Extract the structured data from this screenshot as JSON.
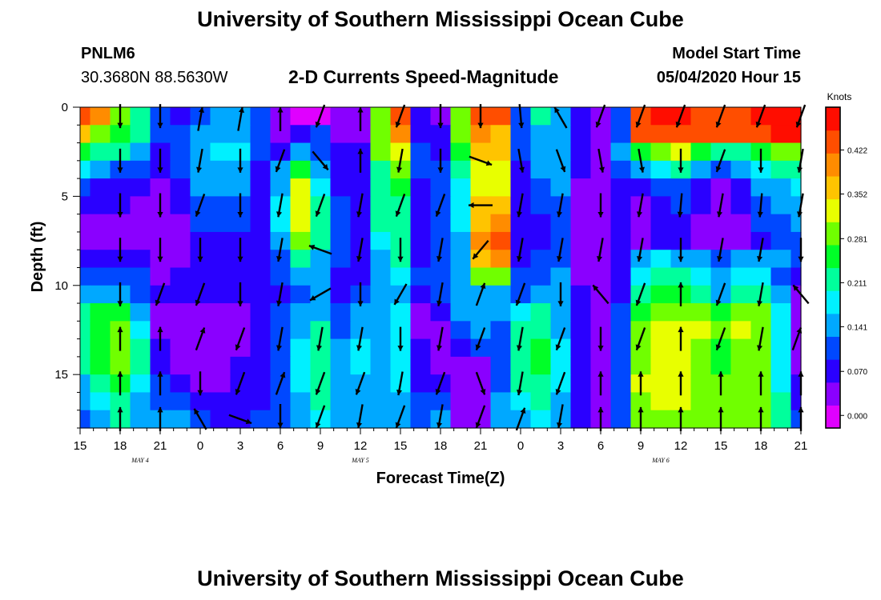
{
  "header": {
    "title": "University of Southern Mississippi Ocean Cube",
    "station_name": "PNLM6",
    "station_coords": "30.3680N 88.5630W",
    "chart_title": "2-D Currents Speed-Magnitude",
    "model_start_label": "Model Start Time",
    "model_start_value": "05/04/2020 Hour 15"
  },
  "footer": {
    "title": "University of Southern Mississippi Ocean Cube"
  },
  "chart_data": {
    "type": "heatmap",
    "title": "2-D Currents Speed-Magnitude",
    "xlabel": "Forecast Time(Z)",
    "ylabel": "Depth (ft)",
    "x_tick_labels": [
      "15",
      "18",
      "21",
      "0",
      "3",
      "6",
      "9",
      "12",
      "15",
      "18",
      "21",
      "0",
      "3",
      "6",
      "9",
      "12",
      "15",
      "18",
      "21"
    ],
    "x_range_hours": [
      0,
      54
    ],
    "date_labels": [
      {
        "text": "MAY 4",
        "hour": 4.5
      },
      {
        "text": "MAY 5",
        "hour": 21
      },
      {
        "text": "MAY 6",
        "hour": 43.5
      }
    ],
    "y_tick_labels": [
      "0",
      "5",
      "10",
      "15"
    ],
    "y_ticks": [
      0,
      5,
      10,
      15
    ],
    "ylim": [
      0,
      18
    ],
    "y_inverted": true,
    "colorbar": {
      "unit": "Knots",
      "tick_labels": [
        "0.000",
        "0.070",
        "0.141",
        "0.211",
        "0.281",
        "0.352",
        "0.422"
      ],
      "ticks": [
        0,
        0.07,
        0.141,
        0.211,
        0.281,
        0.352,
        0.422
      ],
      "range": [
        -0.02,
        0.49
      ],
      "colors": [
        "#e000ff",
        "#8a00ff",
        "#2a00ff",
        "#0048ff",
        "#00a8ff",
        "#00f0ff",
        "#00ff9c",
        "#00ff28",
        "#70ff00",
        "#e8ff00",
        "#ffc400",
        "#ff8c00",
        "#ff4e00",
        "#ff0d00"
      ]
    },
    "grid": {
      "times": [
        0,
        1.5,
        3,
        4.5,
        6,
        7.5,
        9,
        10.5,
        12,
        13.5,
        15,
        16.5,
        18,
        19.5,
        21,
        22.5,
        24,
        25.5,
        27,
        28.5,
        30,
        31.5,
        33,
        34.5,
        36,
        37.5,
        39,
        40.5,
        42,
        43.5,
        45,
        46.5,
        48,
        49.5,
        51,
        52.5,
        54
      ],
      "depths": [
        0.5,
        1.5,
        2.5,
        3.5,
        4.5,
        5.5,
        6.5,
        7.5,
        8.5,
        9.5,
        10.5,
        11.5,
        12.5,
        13.5,
        14.5,
        15.5,
        16.5,
        17.5
      ],
      "speed_knots": [
        [
          0.45,
          0.4,
          0.3,
          0.22,
          0.1,
          0.08,
          0.12,
          0.14,
          0.14,
          0.1,
          0.02,
          0.01,
          0.01,
          0.02,
          0.03,
          0.3,
          0.42,
          0.06,
          0.05,
          0.3,
          0.42,
          0.42,
          0.1,
          0.2,
          0.14,
          0.06,
          0.05,
          0.1,
          0.45,
          0.46,
          0.46,
          0.44,
          0.44,
          0.44,
          0.46,
          0.48,
          0.48
        ],
        [
          0.35,
          0.3,
          0.26,
          0.2,
          0.1,
          0.09,
          0.14,
          0.16,
          0.16,
          0.12,
          0.04,
          0.07,
          0.1,
          0.05,
          0.05,
          0.3,
          0.4,
          0.08,
          0.06,
          0.3,
          0.4,
          0.36,
          0.1,
          0.16,
          0.14,
          0.06,
          0.04,
          0.12,
          0.42,
          0.44,
          0.44,
          0.42,
          0.42,
          0.42,
          0.44,
          0.46,
          0.46
        ],
        [
          0.25,
          0.22,
          0.2,
          0.16,
          0.08,
          0.1,
          0.16,
          0.18,
          0.18,
          0.12,
          0.08,
          0.16,
          0.12,
          0.06,
          0.06,
          0.28,
          0.34,
          0.1,
          0.08,
          0.24,
          0.38,
          0.36,
          0.1,
          0.14,
          0.14,
          0.06,
          0.04,
          0.14,
          0.25,
          0.3,
          0.34,
          0.26,
          0.2,
          0.22,
          0.24,
          0.3,
          0.3
        ],
        [
          0.18,
          0.14,
          0.12,
          0.1,
          0.06,
          0.1,
          0.16,
          0.16,
          0.16,
          0.08,
          0.14,
          0.26,
          0.16,
          0.06,
          0.06,
          0.22,
          0.28,
          0.1,
          0.1,
          0.22,
          0.34,
          0.34,
          0.08,
          0.14,
          0.14,
          0.06,
          0.04,
          0.1,
          0.14,
          0.18,
          0.2,
          0.16,
          0.1,
          0.14,
          0.18,
          0.2,
          0.22
        ],
        [
          0.1,
          0.08,
          0.08,
          0.06,
          0.04,
          0.08,
          0.14,
          0.14,
          0.14,
          0.06,
          0.16,
          0.32,
          0.18,
          0.08,
          0.06,
          0.22,
          0.24,
          0.08,
          0.12,
          0.18,
          0.32,
          0.34,
          0.08,
          0.12,
          0.14,
          0.05,
          0.04,
          0.08,
          0.06,
          0.1,
          0.12,
          0.08,
          0.04,
          0.08,
          0.14,
          0.16,
          0.18
        ],
        [
          0.06,
          0.06,
          0.06,
          0.05,
          0.03,
          0.06,
          0.12,
          0.12,
          0.12,
          0.06,
          0.18,
          0.34,
          0.2,
          0.1,
          0.06,
          0.2,
          0.22,
          0.06,
          0.12,
          0.18,
          0.36,
          0.38,
          0.06,
          0.1,
          0.12,
          0.05,
          0.04,
          0.06,
          0.05,
          0.08,
          0.1,
          0.06,
          0.03,
          0.06,
          0.12,
          0.14,
          0.16
        ],
        [
          0.05,
          0.05,
          0.05,
          0.04,
          0.02,
          0.05,
          0.1,
          0.1,
          0.1,
          0.06,
          0.18,
          0.32,
          0.2,
          0.12,
          0.08,
          0.2,
          0.22,
          0.06,
          0.1,
          0.18,
          0.38,
          0.4,
          0.06,
          0.08,
          0.1,
          0.04,
          0.03,
          0.06,
          0.04,
          0.06,
          0.08,
          0.05,
          0.02,
          0.05,
          0.1,
          0.12,
          0.14
        ],
        [
          0.05,
          0.05,
          0.05,
          0.04,
          0.02,
          0.04,
          0.08,
          0.08,
          0.08,
          0.06,
          0.16,
          0.28,
          0.2,
          0.12,
          0.08,
          0.18,
          0.2,
          0.06,
          0.1,
          0.16,
          0.4,
          0.42,
          0.06,
          0.08,
          0.1,
          0.04,
          0.03,
          0.06,
          0.05,
          0.06,
          0.07,
          0.05,
          0.03,
          0.05,
          0.08,
          0.1,
          0.12
        ],
        [
          0.08,
          0.08,
          0.08,
          0.06,
          0.03,
          0.05,
          0.08,
          0.08,
          0.08,
          0.06,
          0.12,
          0.2,
          0.16,
          0.1,
          0.08,
          0.16,
          0.2,
          0.08,
          0.1,
          0.16,
          0.38,
          0.4,
          0.08,
          0.1,
          0.12,
          0.05,
          0.04,
          0.08,
          0.16,
          0.18,
          0.16,
          0.14,
          0.12,
          0.14,
          0.16,
          0.14,
          0.1
        ],
        [
          0.12,
          0.12,
          0.12,
          0.1,
          0.04,
          0.06,
          0.08,
          0.08,
          0.08,
          0.06,
          0.1,
          0.14,
          0.14,
          0.08,
          0.08,
          0.14,
          0.18,
          0.1,
          0.1,
          0.16,
          0.3,
          0.3,
          0.1,
          0.12,
          0.14,
          0.05,
          0.04,
          0.08,
          0.18,
          0.2,
          0.2,
          0.18,
          0.16,
          0.18,
          0.18,
          0.12,
          0.06
        ],
        [
          0.14,
          0.14,
          0.14,
          0.12,
          0.06,
          0.06,
          0.06,
          0.06,
          0.06,
          0.06,
          0.08,
          0.12,
          0.14,
          0.08,
          0.1,
          0.14,
          0.16,
          0.06,
          0.1,
          0.16,
          0.16,
          0.16,
          0.12,
          0.14,
          0.14,
          0.06,
          0.05,
          0.08,
          0.22,
          0.24,
          0.24,
          0.2,
          0.16,
          0.2,
          0.22,
          0.16,
          0.04
        ],
        [
          0.2,
          0.24,
          0.24,
          0.16,
          0.04,
          0.04,
          0.04,
          0.04,
          0.04,
          0.06,
          0.1,
          0.14,
          0.16,
          0.1,
          0.14,
          0.16,
          0.18,
          0.04,
          0.06,
          0.14,
          0.16,
          0.14,
          0.18,
          0.2,
          0.16,
          0.06,
          0.04,
          0.1,
          0.26,
          0.28,
          0.3,
          0.28,
          0.26,
          0.28,
          0.28,
          0.18,
          0.02
        ],
        [
          0.22,
          0.26,
          0.28,
          0.18,
          0.04,
          0.03,
          0.02,
          0.03,
          0.04,
          0.06,
          0.1,
          0.16,
          0.2,
          0.12,
          0.16,
          0.16,
          0.18,
          0.04,
          0.05,
          0.12,
          0.14,
          0.12,
          0.2,
          0.22,
          0.16,
          0.06,
          0.04,
          0.12,
          0.3,
          0.32,
          0.34,
          0.32,
          0.3,
          0.32,
          0.3,
          0.18,
          0.02
        ],
        [
          0.22,
          0.26,
          0.3,
          0.2,
          0.06,
          0.03,
          0.02,
          0.03,
          0.05,
          0.06,
          0.12,
          0.18,
          0.22,
          0.14,
          0.18,
          0.16,
          0.18,
          0.06,
          0.04,
          0.06,
          0.1,
          0.12,
          0.22,
          0.24,
          0.18,
          0.06,
          0.04,
          0.12,
          0.3,
          0.33,
          0.34,
          0.3,
          0.26,
          0.3,
          0.3,
          0.18,
          0.02
        ],
        [
          0.2,
          0.26,
          0.3,
          0.2,
          0.08,
          0.04,
          0.03,
          0.04,
          0.06,
          0.06,
          0.12,
          0.18,
          0.22,
          0.14,
          0.18,
          0.16,
          0.18,
          0.08,
          0.04,
          0.03,
          0.02,
          0.1,
          0.22,
          0.24,
          0.18,
          0.06,
          0.04,
          0.12,
          0.3,
          0.34,
          0.34,
          0.3,
          0.26,
          0.3,
          0.3,
          0.18,
          0.04
        ],
        [
          0.16,
          0.22,
          0.26,
          0.18,
          0.1,
          0.06,
          0.04,
          0.05,
          0.06,
          0.06,
          0.12,
          0.18,
          0.22,
          0.14,
          0.16,
          0.16,
          0.18,
          0.08,
          0.06,
          0.02,
          0.02,
          0.1,
          0.2,
          0.22,
          0.18,
          0.06,
          0.04,
          0.12,
          0.32,
          0.34,
          0.34,
          0.3,
          0.28,
          0.3,
          0.3,
          0.18,
          0.06
        ],
        [
          0.14,
          0.18,
          0.22,
          0.16,
          0.12,
          0.1,
          0.06,
          0.06,
          0.06,
          0.08,
          0.12,
          0.16,
          0.2,
          0.14,
          0.16,
          0.16,
          0.16,
          0.1,
          0.1,
          0.02,
          0.02,
          0.14,
          0.18,
          0.2,
          0.16,
          0.06,
          0.04,
          0.12,
          0.3,
          0.32,
          0.32,
          0.3,
          0.28,
          0.3,
          0.3,
          0.2,
          0.08
        ],
        [
          0.12,
          0.16,
          0.2,
          0.14,
          0.14,
          0.14,
          0.1,
          0.08,
          0.06,
          0.1,
          0.12,
          0.14,
          0.18,
          0.14,
          0.16,
          0.16,
          0.16,
          0.12,
          0.14,
          0.04,
          0.04,
          0.16,
          0.16,
          0.18,
          0.16,
          0.06,
          0.04,
          0.12,
          0.3,
          0.3,
          0.3,
          0.3,
          0.3,
          0.3,
          0.3,
          0.22,
          0.1
        ]
      ]
    },
    "vectors": {
      "times": [
        3,
        6,
        9,
        12,
        15,
        18,
        21,
        24,
        27,
        30,
        33,
        36,
        39,
        42,
        45,
        48,
        51,
        54
      ],
      "depths": [
        0.5,
        3,
        5.5,
        8,
        10.5,
        13,
        15.5,
        17.5
      ],
      "angle_deg": [
        [
          180,
          180,
          10,
          10,
          0,
          200,
          0,
          200,
          180,
          180,
          175,
          330,
          200,
          200,
          200,
          200,
          200,
          200
        ],
        [
          180,
          180,
          190,
          180,
          200,
          140,
          0,
          190,
          180,
          110,
          170,
          160,
          170,
          170,
          180,
          200,
          180,
          190
        ],
        [
          180,
          180,
          200,
          180,
          190,
          200,
          190,
          200,
          200,
          270,
          190,
          190,
          180,
          190,
          185,
          190,
          185,
          190
        ],
        [
          180,
          180,
          180,
          180,
          190,
          290,
          190,
          180,
          190,
          220,
          190,
          190,
          190,
          190,
          180,
          190,
          190,
          180
        ],
        [
          180,
          200,
          200,
          180,
          190,
          240,
          180,
          210,
          190,
          20,
          200,
          180,
          320,
          200,
          0,
          200,
          190,
          320
        ],
        [
          0,
          0,
          20,
          200,
          190,
          190,
          190,
          180,
          190,
          200,
          190,
          200,
          180,
          200,
          0,
          200,
          190,
          20
        ],
        [
          0,
          0,
          180,
          200,
          20,
          200,
          200,
          190,
          200,
          160,
          190,
          200,
          0,
          0,
          0,
          0,
          0,
          0
        ],
        [
          0,
          0,
          330,
          110,
          180,
          200,
          190,
          200,
          190,
          200,
          20,
          190,
          0,
          0,
          0,
          0,
          0,
          0
        ]
      ]
    }
  }
}
